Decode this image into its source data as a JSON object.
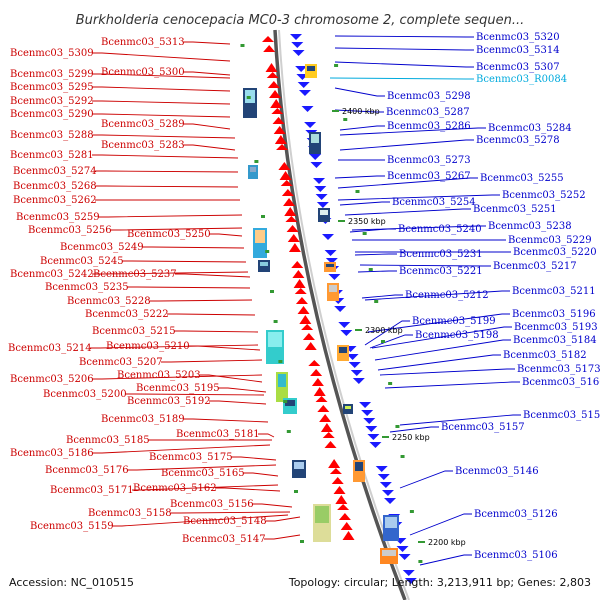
{
  "title": "Burkholderia cenocepacia MC0-3 chromosome 2, complete sequen...",
  "footer": {
    "accession": "Accession: NC_010515",
    "summary": "Topology: circular; Length: 3,213,911 bp; Genes: 2,803"
  },
  "colors": {
    "left_label": "#cc0000",
    "right_label": "#0000cc",
    "rna_label": "#00aadd",
    "forward_arrow": "#ff0000",
    "reverse_arrow": "#1a1aff",
    "backbone": "#8a8a8a",
    "tick": "#339933"
  },
  "kbp_markers": [
    "2400 kbp",
    "2350 kbp",
    "2300 kbp",
    "2250 kbp",
    "2200 kbp"
  ],
  "left_labels": [
    "Bcenmc03_5313",
    "Bcenmc03_5309",
    "Bcenmc03_5300",
    "Bcenmc03_5299",
    "Bcenmc03_5295",
    "Bcenmc03_5292",
    "Bcenmc03_5290",
    "Bcenmc03_5289",
    "Bcenmc03_5288",
    "Bcenmc03_5283",
    "Bcenmc03_5281",
    "Bcenmc03_5274",
    "Bcenmc03_5268",
    "Bcenmc03_5262",
    "Bcenmc03_5259",
    "Bcenmc03_5256",
    "Bcenmc03_5250",
    "Bcenmc03_5249",
    "Bcenmc03_5245",
    "Bcenmc03_5242",
    "Bcenmc03_5237",
    "Bcenmc03_5235",
    "Bcenmc03_5228",
    "Bcenmc03_5222",
    "Bcenmc03_5215",
    "Bcenmc03_5214",
    "Bcenmc03_5210",
    "Bcenmc03_5207",
    "Bcenmc03_5206",
    "Bcenmc03_5203",
    "Bcenmc03_5200",
    "Bcenmc03_5195",
    "Bcenmc03_5192",
    "Bcenmc03_5189",
    "Bcenmc03_5186",
    "Bcenmc03_5185",
    "Bcenmc03_5181",
    "Bcenmc03_5176",
    "Bcenmc03_5175",
    "Bcenmc03_5171",
    "Bcenmc03_5165",
    "Bcenmc03_5162",
    "Bcenmc03_5159",
    "Bcenmc03_5158",
    "Bcenmc03_5156",
    "Bcenmc03_5148",
    "Bcenmc03_5147"
  ],
  "right_labels": [
    "Bcenmc03_5320",
    "Bcenmc03_5314",
    "Bcenmc03_5307",
    "Bcenmc03_R0084",
    "Bcenmc03_5298",
    "Bcenmc03_5287",
    "Bcenmc03_5286",
    "Bcenmc03_5284",
    "Bcenmc03_5278",
    "Bcenmc03_5273",
    "Bcenmc03_5267",
    "Bcenmc03_5255",
    "Bcenmc03_5252",
    "Bcenmc03_5254",
    "Bcenmc03_5251",
    "Bcenmc03_5240",
    "Bcenmc03_5238",
    "Bcenmc03_5229",
    "Bcenmc03_5231",
    "Bcenmc03_5220",
    "Bcenmc03_5221",
    "Bcenmc03_5217",
    "Bcenmc03_5212",
    "Bcenmc03_5211",
    "Bcenmc03_5199",
    "Bcenmc03_5196",
    "Bcenmc03_5198",
    "Bcenmc03_5193",
    "Bcenmc03_5184",
    "Bcenmc03_5182",
    "Bcenmc03_5173",
    "Bcenmc03_5166",
    "Bcenmc03_5157",
    "Bcenmc03_5153",
    "Bcenmc03_5146",
    "Bcenmc03_5126",
    "Bcenmc03_5106"
  ]
}
